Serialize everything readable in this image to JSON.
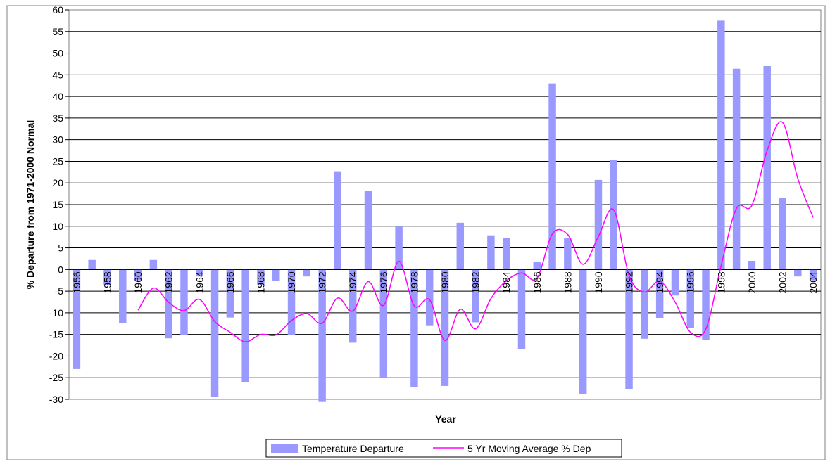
{
  "chart_data": {
    "type": "bar",
    "title": "",
    "xlabel": "Year",
    "ylabel": "% Departure from 1971-2000 Normal",
    "ylim": [
      -30,
      60
    ],
    "y_ticks": [
      -30,
      -25,
      -20,
      -15,
      -10,
      -5,
      0,
      5,
      10,
      15,
      20,
      25,
      30,
      35,
      40,
      45,
      50,
      55,
      60
    ],
    "grid": "horizontal",
    "legend_position": "bottom",
    "x_tick_labels": [
      "1956",
      "1958",
      "1960",
      "1962",
      "1964",
      "1966",
      "1968",
      "1970",
      "1972",
      "1974",
      "1976",
      "1978",
      "1980",
      "1982",
      "1984",
      "1986",
      "1988",
      "1990",
      "1992",
      "1994",
      "1996",
      "1998",
      "2000",
      "2002",
      "2004"
    ],
    "categories": [
      1956,
      1957,
      1958,
      1959,
      1960,
      1961,
      1962,
      1963,
      1964,
      1965,
      1966,
      1967,
      1968,
      1969,
      1970,
      1971,
      1972,
      1973,
      1974,
      1975,
      1976,
      1977,
      1978,
      1979,
      1980,
      1981,
      1982,
      1983,
      1984,
      1985,
      1986,
      1987,
      1988,
      1989,
      1990,
      1991,
      1992,
      1993,
      1994,
      1995,
      1996,
      1997,
      1998,
      1999,
      2000,
      2001,
      2002,
      2003,
      2004
    ],
    "series": [
      {
        "name": "Temperature Departure",
        "kind": "bar",
        "color": "#9999ff",
        "values": [
          -23,
          2.2,
          -3.5,
          -12.3,
          -2.5,
          2.2,
          -15.9,
          -15.1,
          -1.6,
          -29.5,
          -11.1,
          -26.1,
          -3.5,
          -2.6,
          -15.1,
          -1.6,
          -30.6,
          22.7,
          -16.9,
          18.2,
          -25.1,
          10.1,
          -27.2,
          -12.9,
          -26.9,
          10.8,
          -12.2,
          7.9,
          7.3,
          -18.3,
          1.8,
          43,
          7.2,
          -28.7,
          20.7,
          25.3,
          -27.6,
          -16,
          -11.3,
          -6,
          -13.5,
          -16.2,
          57.5,
          46.4,
          2,
          47,
          16.5,
          -1.6,
          -2.5
        ]
      },
      {
        "name": "5 Yr Moving Average %  Dep",
        "kind": "line",
        "color": "#ff00ff",
        "values": [
          null,
          null,
          null,
          null,
          -9.4,
          -4.3,
          -7.6,
          -9.5,
          -6.9,
          -12,
          -14.5,
          -16.7,
          -15,
          -15.1,
          -11.8,
          -10.2,
          -12.4,
          -6.6,
          -9.6,
          -2.8,
          -8.3,
          1.9,
          -8.4,
          -7,
          -16.4,
          -9.2,
          -13.7,
          -6.7,
          -2.6,
          -0.8,
          -2,
          8.2,
          8.1,
          1.2,
          7.6,
          13.8,
          -1.4,
          -5.2,
          -2.7,
          -7.5,
          -14.5,
          -13.8,
          0.9,
          14.1,
          14.8,
          27.5,
          34,
          21,
          12
        ]
      }
    ]
  }
}
